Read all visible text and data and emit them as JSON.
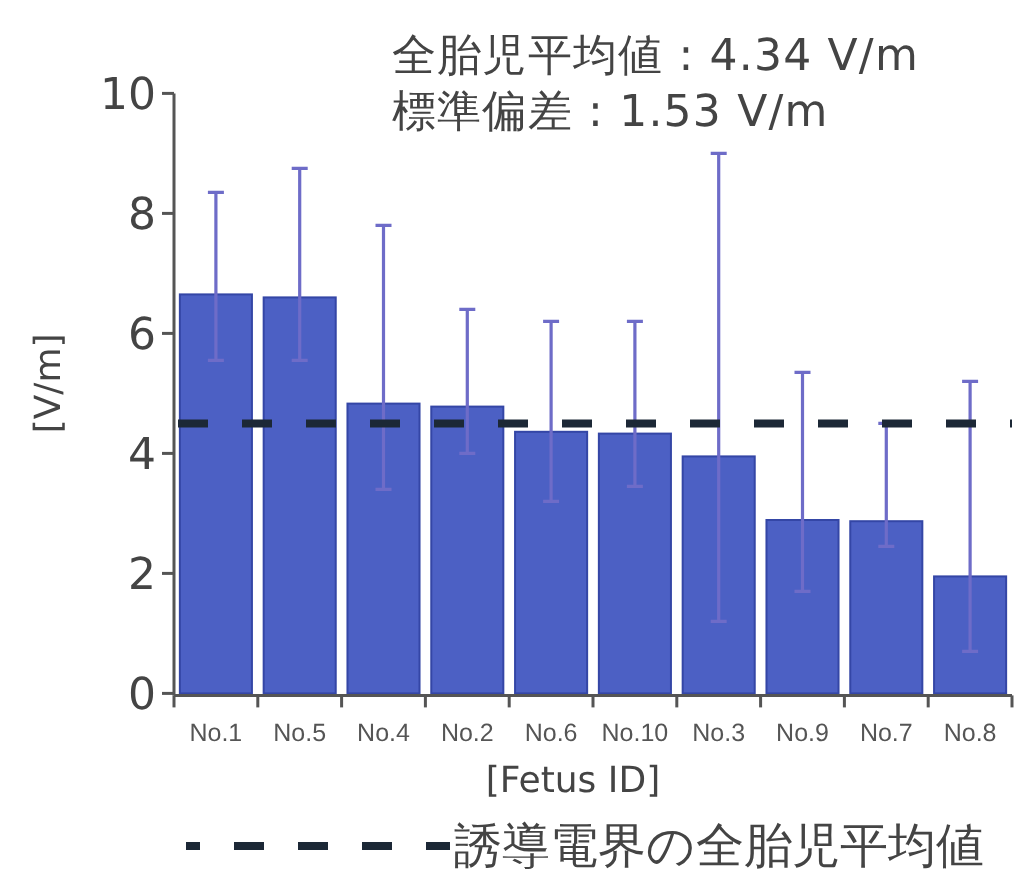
{
  "chart_data": {
    "type": "bar",
    "categories": [
      "No.1",
      "No.5",
      "No.4",
      "No.2",
      "No.6",
      "No.10",
      "No.3",
      "No.9",
      "No.7",
      "No.8"
    ],
    "values": [
      6.65,
      6.6,
      4.83,
      4.78,
      4.36,
      4.33,
      3.95,
      2.89,
      2.87,
      1.95
    ],
    "errors": [
      [
        5.55,
        8.35
      ],
      [
        5.55,
        8.75
      ],
      [
        3.4,
        7.8
      ],
      [
        4.0,
        6.4
      ],
      [
        3.2,
        6.2
      ],
      [
        3.45,
        6.2
      ],
      [
        1.2,
        9.0
      ],
      [
        1.7,
        5.35
      ],
      [
        2.45,
        4.5
      ],
      [
        0.7,
        5.2
      ]
    ],
    "color": "#4c60c4",
    "ylim": [
      0,
      10
    ],
    "yticks": [
      0,
      2,
      4,
      6,
      8,
      10
    ],
    "xlabel": "[Fetus ID]",
    "ylabel": "[V/m]",
    "annotations": [
      "全胎児平均値 : 4.34 V/m",
      "標準偏差 : 1.53 V/m"
    ],
    "ref_lines": [
      {
        "axis": "y",
        "value": 4.5,
        "label": "誘導電界の全胎児平均値",
        "color": "#1c2836",
        "line_style": "dashed"
      }
    ],
    "legend": "bottom"
  }
}
